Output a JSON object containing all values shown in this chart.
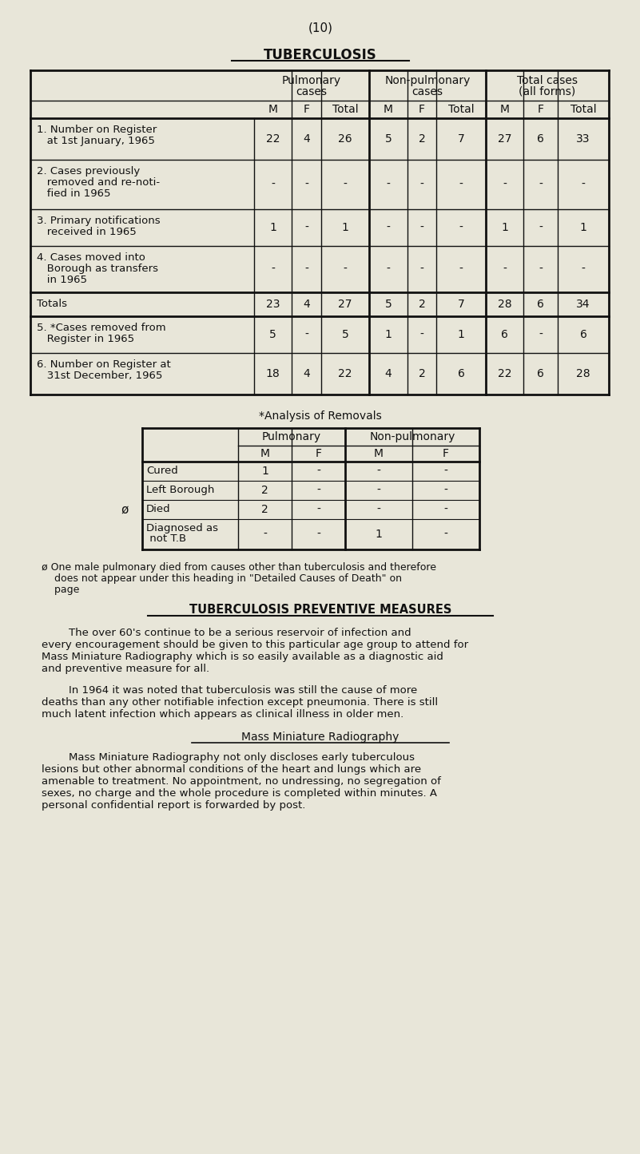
{
  "page_number": "(10)",
  "title": "TUBERCULOSIS",
  "bg_color": "#e8e6d9",
  "text_color": "#111111",
  "main_table_rows": [
    [
      "1. Number on Register\n   at 1st January, 1965",
      "22",
      "4",
      "26",
      "5",
      "2",
      "7",
      "27",
      "6",
      "33"
    ],
    [
      "2. Cases previously\n   removed and re-noti-\n   fied in 1965",
      "-",
      "-",
      "-",
      "-",
      "-",
      "-",
      "-",
      "-",
      "-"
    ],
    [
      "3. Primary notifications\n   received in 1965",
      "1",
      "-",
      "1",
      "-",
      "-",
      "-",
      "1",
      "-",
      "1"
    ],
    [
      "4. Cases moved into\n   Borough as transfers\n   in 1965",
      "-",
      "-",
      "-",
      "-",
      "-",
      "-",
      "-",
      "-",
      "-"
    ],
    [
      "Totals",
      "23",
      "4",
      "27",
      "5",
      "2",
      "7",
      "28",
      "6",
      "34"
    ],
    [
      "5. *Cases removed from\n   Register in 1965",
      "5",
      "-",
      "5",
      "1",
      "-",
      "1",
      "6",
      "-",
      "6"
    ],
    [
      "6. Number on Register at\n   31st December, 1965",
      "18",
      "4",
      "22",
      "4",
      "2",
      "6",
      "22",
      "6",
      "28"
    ]
  ],
  "analysis_rows": [
    [
      "Cured",
      "1",
      "-",
      "-",
      "-"
    ],
    [
      "Left Borough",
      "2",
      "-",
      "-",
      "-"
    ],
    [
      "Died",
      "2",
      "-",
      "-",
      "-"
    ],
    [
      "Diagnosed as\n not T.B",
      "-",
      "-",
      "1",
      "-"
    ]
  ],
  "analysis_title": "*Analysis of Removals",
  "phi_symbol": "ø",
  "footnote_line1": "ø One male pulmonary died from causes other than tuberculosis and therefore",
  "footnote_line2": "    does not appear under this heading in \"Detailed Causes of Death\" on",
  "footnote_line3": "    page",
  "section_title": "TUBERCULOSIS PREVENTIVE MEASURES",
  "para1_indent": "        The over 60's continue to be a serious reservoir of infection and",
  "para1_rest": "every encouragement should be given to this particular age group to attend for\nMass Miniature Radiography which is so easily available as a diagnostic aid\nand preventive measure for all.",
  "para2_indent": "        In 1964 it was noted that tuberculosis was still the cause of more",
  "para2_rest": "deaths than any other notifiable infection except pneumonia. There is still\nmuch latent infection which appears as clinical illness in older men.",
  "subsection_title": "Mass Miniature Radiography",
  "para3_indent": "        Mass Miniature Radiography not only discloses early tuberculous",
  "para3_rest": "lesions but other abnormal conditions of the heart and lungs which are\namenable to treatment. No appointment, no undressing, no segregation of\nsexes, no charge and the whole procedure is completed within minutes. A\npersonal confidential report is forwarded by post."
}
